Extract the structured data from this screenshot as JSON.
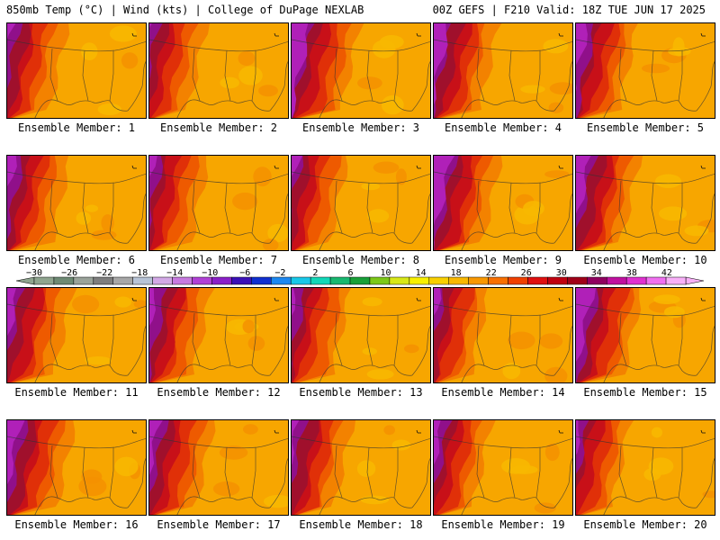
{
  "header": {
    "left": "850mb Temp (°C) | Wind (kts) | College of DuPage NEXLAB",
    "right": "00Z GEFS | F210 Valid: 18Z TUE JUN 17 2025"
  },
  "panels": [
    {
      "caption": "Ensemble Member: 1"
    },
    {
      "caption": "Ensemble Member: 2"
    },
    {
      "caption": "Ensemble Member: 3"
    },
    {
      "caption": "Ensemble Member: 4"
    },
    {
      "caption": "Ensemble Member: 5"
    },
    {
      "caption": "Ensemble Member: 6"
    },
    {
      "caption": "Ensemble Member: 7"
    },
    {
      "caption": "Ensemble Member: 8"
    },
    {
      "caption": "Ensemble Member: 9"
    },
    {
      "caption": "Ensemble Member: 10"
    },
    {
      "caption": "Ensemble Member: 11"
    },
    {
      "caption": "Ensemble Member: 12"
    },
    {
      "caption": "Ensemble Member: 13"
    },
    {
      "caption": "Ensemble Member: 14"
    },
    {
      "caption": "Ensemble Member: 15"
    },
    {
      "caption": "Ensemble Member: 16"
    },
    {
      "caption": "Ensemble Member: 17"
    },
    {
      "caption": "Ensemble Member: 18"
    },
    {
      "caption": "Ensemble Member: 19"
    },
    {
      "caption": "Ensemble Member: 20"
    }
  ],
  "colorbar": {
    "tick_labels": [
      "-30",
      "-26",
      "-22",
      "-18",
      "-14",
      "-10",
      "-6",
      "-2",
      "2",
      "6",
      "10",
      "14",
      "18",
      "22",
      "26",
      "30",
      "34",
      "38",
      "42"
    ],
    "colors": [
      "#8fa58f",
      "#6e8a74",
      "#9aa39a",
      "#7e7e7e",
      "#a7a7a7",
      "#b7c3d6",
      "#d3a9e6",
      "#c77ae0",
      "#b040d6",
      "#8a20c8",
      "#3a10b8",
      "#1030d0",
      "#1c88f0",
      "#18c8e8",
      "#12d8b8",
      "#18b870",
      "#18a038",
      "#7cc818",
      "#d8e818",
      "#f8f000",
      "#f8d000",
      "#f8b800",
      "#f89800",
      "#f87000",
      "#f04000",
      "#e01010",
      "#c00010",
      "#a00018",
      "#900060",
      "#c010a0",
      "#e030d0",
      "#f070f0",
      "#f8b0f8"
    ]
  }
}
